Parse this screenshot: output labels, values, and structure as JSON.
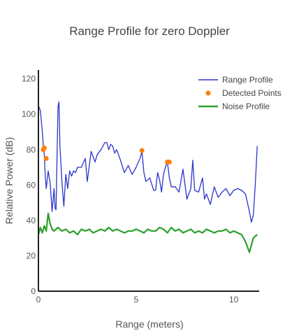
{
  "chart_data": {
    "type": "line",
    "title": "Range Profile for zero Doppler",
    "xlabel": "Range (meters)",
    "ylabel": "Relative Power (dB)",
    "xlim": [
      0,
      11.3
    ],
    "ylim": [
      0,
      125
    ],
    "x_ticks": [
      0,
      5,
      10
    ],
    "y_ticks": [
      0,
      20,
      40,
      60,
      80,
      100,
      120
    ],
    "grid": false,
    "legend_position": "top-right",
    "series": [
      {
        "name": "Range Profile",
        "mode": "line",
        "color": "#2b35c9",
        "x": [
          0,
          0.1,
          0.2,
          0.25,
          0.3,
          0.35,
          0.4,
          0.5,
          0.6,
          0.7,
          0.8,
          0.85,
          0.9,
          1.0,
          1.05,
          1.1,
          1.2,
          1.3,
          1.4,
          1.5,
          1.6,
          1.7,
          1.8,
          1.9,
          2.0,
          2.2,
          2.4,
          2.5,
          2.7,
          2.9,
          3.0,
          3.2,
          3.4,
          3.5,
          3.6,
          3.7,
          3.8,
          3.9,
          4.0,
          4.2,
          4.4,
          4.6,
          4.8,
          5.0,
          5.2,
          5.3,
          5.4,
          5.5,
          5.7,
          5.9,
          6.0,
          6.1,
          6.2,
          6.3,
          6.4,
          6.5,
          6.6,
          6.7,
          6.8,
          7.0,
          7.2,
          7.4,
          7.6,
          7.8,
          7.9,
          8.0,
          8.2,
          8.4,
          8.5,
          8.6,
          8.8,
          9.0,
          9.2,
          9.4,
          9.6,
          9.8,
          10.0,
          10.2,
          10.4,
          10.6,
          10.8,
          10.9,
          11.0,
          11.1,
          11.2
        ],
        "values": [
          105,
          102,
          90,
          82,
          77,
          65,
          58,
          68,
          61,
          45,
          58,
          47,
          46,
          104,
          107,
          82,
          62,
          48,
          66,
          58,
          68,
          65,
          68,
          67,
          70,
          70,
          75,
          62,
          79,
          73,
          77,
          80,
          84,
          84,
          80,
          83,
          82,
          78,
          80,
          74,
          67,
          71,
          66,
          70,
          75,
          79,
          67,
          62,
          64,
          57,
          57,
          67,
          63,
          56,
          66,
          70,
          73,
          64,
          59,
          59,
          56,
          69,
          52,
          58,
          74,
          57,
          56,
          64,
          52,
          55,
          49,
          59,
          53,
          56,
          58,
          54,
          57,
          58,
          57,
          55,
          45,
          39,
          43,
          60,
          82
        ]
      },
      {
        "name": "Detected Points",
        "mode": "markers",
        "color": "#ff7f0e",
        "x": [
          0.25,
          0.3,
          0.4,
          5.3,
          6.6,
          6.7
        ],
        "values": [
          80,
          81,
          75,
          79.5,
          73,
          73
        ]
      },
      {
        "name": "Noise Profile",
        "mode": "line",
        "color": "#2ca02c",
        "x": [
          0,
          0.1,
          0.2,
          0.3,
          0.4,
          0.5,
          0.6,
          0.7,
          0.8,
          1.0,
          1.2,
          1.4,
          1.6,
          1.8,
          2.0,
          2.2,
          2.4,
          2.6,
          2.8,
          3.0,
          3.2,
          3.4,
          3.6,
          3.8,
          4.0,
          4.2,
          4.4,
          4.6,
          4.8,
          5.0,
          5.2,
          5.4,
          5.6,
          5.8,
          6.0,
          6.2,
          6.4,
          6.6,
          6.8,
          7.0,
          7.2,
          7.4,
          7.6,
          7.8,
          8.0,
          8.2,
          8.4,
          8.6,
          8.8,
          9.0,
          9.2,
          9.4,
          9.6,
          9.8,
          10.0,
          10.2,
          10.4,
          10.6,
          10.7,
          10.8,
          10.9,
          11.0,
          11.1,
          11.2
        ],
        "values": [
          32,
          36,
          33,
          37,
          34,
          44,
          38,
          35,
          34,
          36,
          34,
          35,
          33,
          34,
          32,
          35,
          34,
          35,
          33,
          34,
          35,
          34,
          36,
          34,
          35,
          34,
          33,
          34,
          34,
          35,
          34,
          33,
          35,
          34,
          34,
          36,
          35,
          33,
          36,
          34,
          35,
          33,
          34,
          35,
          33,
          34,
          33,
          35,
          34,
          33,
          34,
          34,
          35,
          33,
          34,
          33,
          32,
          28,
          25,
          22,
          26,
          30,
          31,
          32
        ]
      }
    ]
  }
}
